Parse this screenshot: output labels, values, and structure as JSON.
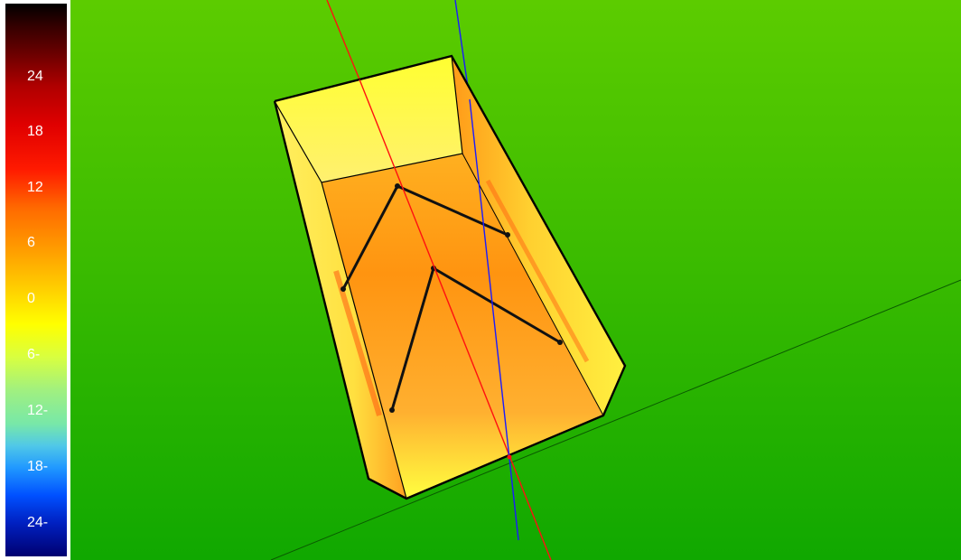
{
  "legend": {
    "ticks": [
      "24",
      "18",
      "12",
      "6",
      "0",
      "-6",
      "-12",
      "-18",
      "-24"
    ],
    "display_ticks": [
      "24",
      "18",
      "12",
      "6",
      "0",
      "6-",
      "12-",
      "18-",
      "24-"
    ]
  },
  "colors": {
    "background_top": "#5ccc00",
    "background_bottom": "#10a800",
    "body_yellow": "#ffff2a",
    "body_orange": "#ff9a10",
    "axis_red": "#ff1010",
    "axis_blue": "#1a1aff",
    "outline": "#000000"
  }
}
